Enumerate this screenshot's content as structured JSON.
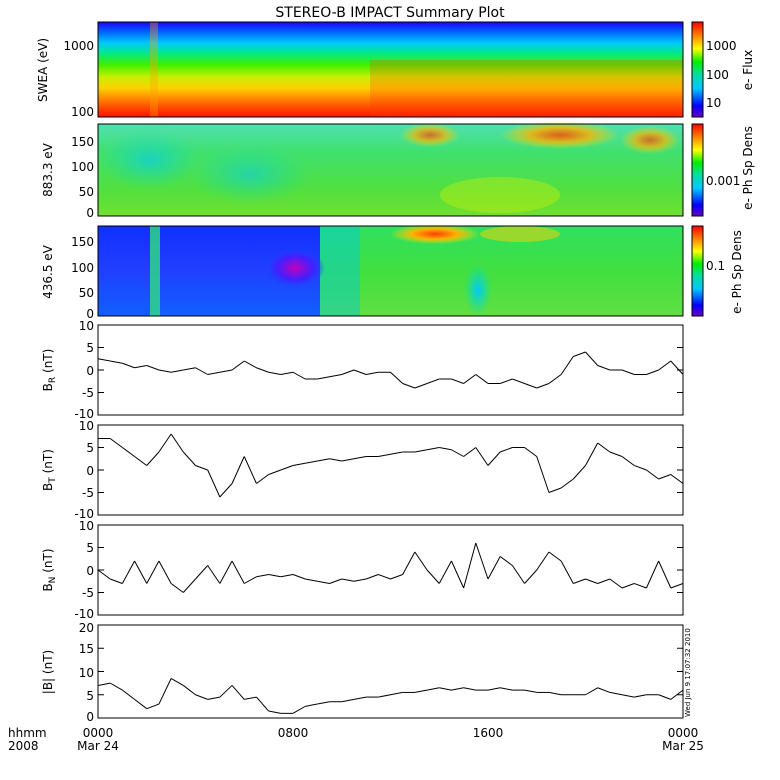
{
  "title": "STEREO-B IMPACT Summary Plot",
  "time_axis": {
    "row1_label": "hhmm",
    "row2_label": "2008",
    "ticks": [
      {
        "time": "0000",
        "date": "Mar 24",
        "hours": 0
      },
      {
        "time": "0800",
        "date": "",
        "hours": 8
      },
      {
        "time": "1600",
        "date": "",
        "hours": 16
      },
      {
        "time": "0000",
        "date": "Mar 25",
        "hours": 24
      }
    ],
    "range_hours": [
      0,
      24
    ]
  },
  "stamp": "Wed Jun  9 17:07:32 2010",
  "panels": {
    "swea": {
      "ylabel": "SWEA (eV)",
      "yticks": [
        "1000",
        "100"
      ],
      "colorbar_label": "e- Flux",
      "colorbar_ticks": [
        "1000",
        "100",
        "10"
      ],
      "scale": "log"
    },
    "pad883": {
      "ylabel": "883.3 eV",
      "yticks": [
        "150",
        "100",
        "50",
        "0"
      ],
      "colorbar_label": "e- Ph Sp Dens",
      "colorbar_ticks": [
        "0.001"
      ]
    },
    "pad436": {
      "ylabel": "436.5 eV",
      "yticks": [
        "150",
        "100",
        "50",
        "0"
      ],
      "colorbar_label": "e- Ph Sp Dens",
      "colorbar_ticks": [
        "0.1"
      ]
    },
    "br": {
      "ylabel": "B",
      "sub": "R",
      "unit": "(nT)",
      "yticks": [
        "10",
        "5",
        "0",
        "-5",
        "-10"
      ]
    },
    "bt": {
      "ylabel": "B",
      "sub": "T",
      "unit": "(nT)",
      "yticks": [
        "10",
        "5",
        "0",
        "-5",
        "-10"
      ]
    },
    "bn": {
      "ylabel": "B",
      "sub": "N",
      "unit": "(nT)",
      "yticks": [
        "10",
        "5",
        "0",
        "-5",
        "-10"
      ]
    },
    "bmag": {
      "ylabel": "|B| (nT)",
      "yticks": [
        "20",
        "15",
        "10",
        "5",
        "0"
      ]
    }
  },
  "chart_data": [
    {
      "type": "heatmap",
      "panel": "swea",
      "ylabel": "SWEA (eV)",
      "ylim": [
        100,
        2000
      ],
      "yscale": "log",
      "colorbar": {
        "label": "e- Flux",
        "scale": "log",
        "ticks": [
          1000,
          100,
          10
        ]
      }
    },
    {
      "type": "heatmap",
      "panel": "pad883",
      "ylabel": "883.3 eV",
      "ylim": [
        0,
        180
      ],
      "colorbar": {
        "label": "e- Ph Sp Dens",
        "ticks": [
          0.001
        ]
      }
    },
    {
      "type": "heatmap",
      "panel": "pad436",
      "ylabel": "436.5 eV",
      "ylim": [
        0,
        180
      ],
      "colorbar": {
        "label": "e- Ph Sp Dens",
        "ticks": [
          0.1
        ]
      }
    },
    {
      "type": "line",
      "panel": "br",
      "ylabel": "BR (nT)",
      "ylim": [
        -10,
        10
      ],
      "x": [
        0,
        0.5,
        1,
        1.5,
        2,
        2.5,
        3,
        3.5,
        4,
        4.5,
        5,
        5.5,
        6,
        6.5,
        7,
        7.5,
        8,
        8.5,
        9,
        9.5,
        10,
        10.5,
        11,
        11.5,
        12,
        12.5,
        13,
        13.5,
        14,
        14.5,
        15,
        15.5,
        16,
        16.5,
        17,
        17.5,
        18,
        18.5,
        19,
        19.5,
        20,
        20.5,
        21,
        21.5,
        22,
        22.5,
        23,
        23.5,
        24
      ],
      "y": [
        2.5,
        2,
        1.5,
        0.5,
        1,
        0,
        -0.5,
        0,
        0.5,
        -1,
        -0.5,
        0,
        2,
        0.5,
        -0.5,
        -1,
        -0.5,
        -2,
        -2,
        -1.5,
        -1,
        0,
        -1,
        -0.5,
        -0.5,
        -3,
        -4,
        -3,
        -2,
        -2,
        -3,
        -1,
        -3,
        -3,
        -2,
        -3,
        -4,
        -3,
        -1,
        3,
        4,
        1,
        0,
        0,
        -1,
        -1,
        0,
        2,
        -1
      ]
    },
    {
      "type": "line",
      "panel": "bt",
      "ylabel": "BT (nT)",
      "ylim": [
        -10,
        10
      ],
      "x": [
        0,
        0.5,
        1,
        1.5,
        2,
        2.5,
        3,
        3.5,
        4,
        4.5,
        5,
        5.5,
        6,
        6.5,
        7,
        7.5,
        8,
        8.5,
        9,
        9.5,
        10,
        10.5,
        11,
        11.5,
        12,
        12.5,
        13,
        13.5,
        14,
        14.5,
        15,
        15.5,
        16,
        16.5,
        17,
        17.5,
        18,
        18.5,
        19,
        19.5,
        20,
        20.5,
        21,
        21.5,
        22,
        22.5,
        23,
        23.5,
        24
      ],
      "y": [
        7,
        7,
        5,
        3,
        1,
        4,
        8,
        4,
        1,
        0,
        -6,
        -3,
        3,
        -3,
        -1,
        0,
        1,
        1.5,
        2,
        2.5,
        2,
        2.5,
        3,
        3,
        3.5,
        4,
        4,
        4.5,
        5,
        4.5,
        3,
        5,
        1,
        4,
        5,
        5,
        3,
        -5,
        -4,
        -2,
        1,
        6,
        4,
        3,
        1,
        0,
        -2,
        -1,
        -3
      ]
    },
    {
      "type": "line",
      "panel": "bn",
      "ylabel": "BN (nT)",
      "ylim": [
        -10,
        10
      ],
      "x": [
        0,
        0.5,
        1,
        1.5,
        2,
        2.5,
        3,
        3.5,
        4,
        4.5,
        5,
        5.5,
        6,
        6.5,
        7,
        7.5,
        8,
        8.5,
        9,
        9.5,
        10,
        10.5,
        11,
        11.5,
        12,
        12.5,
        13,
        13.5,
        14,
        14.5,
        15,
        15.5,
        16,
        16.5,
        17,
        17.5,
        18,
        18.5,
        19,
        19.5,
        20,
        20.5,
        21,
        21.5,
        22,
        22.5,
        23,
        23.5,
        24
      ],
      "y": [
        0,
        -2,
        -3,
        2,
        -3,
        2,
        -3,
        -5,
        -2,
        1,
        -3,
        2,
        -3,
        -1.5,
        -1,
        -1.5,
        -1,
        -2,
        -2.5,
        -3,
        -2,
        -2.5,
        -2,
        -1,
        -2,
        -1,
        4,
        0,
        -3,
        2,
        -4,
        6,
        -2,
        3,
        1,
        -3,
        0,
        4,
        2,
        -3,
        -2,
        -3,
        -2,
        -4,
        -3,
        -4,
        2,
        -4,
        -3
      ]
    },
    {
      "type": "line",
      "panel": "bmag",
      "ylabel": "|B| (nT)",
      "ylim": [
        0,
        20
      ],
      "x": [
        0,
        0.5,
        1,
        1.5,
        2,
        2.5,
        3,
        3.5,
        4,
        4.5,
        5,
        5.5,
        6,
        6.5,
        7,
        7.5,
        8,
        8.5,
        9,
        9.5,
        10,
        10.5,
        11,
        11.5,
        12,
        12.5,
        13,
        13.5,
        14,
        14.5,
        15,
        15.5,
        16,
        16.5,
        17,
        17.5,
        18,
        18.5,
        19,
        19.5,
        20,
        20.5,
        21,
        21.5,
        22,
        22.5,
        23,
        23.5,
        24
      ],
      "y": [
        7,
        7.5,
        6,
        4,
        2,
        3,
        8.5,
        7,
        5,
        4,
        4.5,
        7,
        4,
        4.5,
        1.5,
        1,
        1,
        2.5,
        3,
        3.5,
        3.5,
        4,
        4.5,
        4.5,
        5,
        5.5,
        5.5,
        6,
        6.5,
        6,
        6.5,
        6,
        6,
        6.5,
        6,
        6,
        5.5,
        5.5,
        5,
        5,
        5,
        6.5,
        5.5,
        5,
        4.5,
        5,
        5,
        4,
        6
      ]
    }
  ]
}
